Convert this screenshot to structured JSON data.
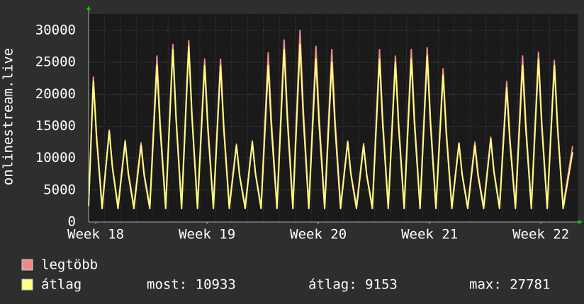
{
  "chart_data": {
    "type": "line",
    "ylabel": "onlinestream.live",
    "x": [
      0,
      0.3,
      0.5,
      0.85,
      1.3,
      1.5,
      1.85,
      2.3,
      2.5,
      2.85,
      3.3,
      3.5,
      3.85,
      4.3,
      4.5,
      4.85,
      5.3,
      5.5,
      5.85,
      6.3,
      6.5,
      6.85,
      7.3,
      7.5,
      7.85,
      8.3,
      8.5,
      8.85,
      9.3,
      9.5,
      9.85,
      10.3,
      10.5,
      10.85,
      11.3,
      11.5,
      11.85,
      12.3,
      12.5,
      12.85,
      13.3,
      13.5,
      13.85,
      14.3,
      14.5,
      14.85,
      15.3,
      15.5,
      15.85,
      16.3,
      16.5,
      16.85,
      17.3,
      17.5,
      17.85,
      18.3,
      18.5,
      18.85,
      19.3,
      19.5,
      19.85,
      20.3,
      20.5,
      20.85,
      21.3,
      21.5,
      21.85,
      22.3,
      22.5,
      22.85,
      23.3,
      23.5,
      23.85,
      24.3,
      24.5,
      24.85,
      25.3,
      25.5,
      25.85,
      26.3,
      26.5,
      26.85,
      27.3,
      27.5,
      27.85,
      28.3,
      28.5,
      28.85,
      29.3,
      29.5,
      29.85,
      30.45
    ],
    "series": [
      {
        "name": "legtöbb",
        "color": "#f08a8a",
        "values": [
          2700,
          22700,
          13620,
          2500,
          14400,
          8640,
          2500,
          12800,
          7680,
          2500,
          12400,
          7440,
          2500,
          26000,
          15600,
          2500,
          27800,
          16680,
          2500,
          28400,
          17040,
          2500,
          25500,
          15300,
          2500,
          25500,
          15300,
          2500,
          12200,
          7320,
          2500,
          12700,
          7620,
          2500,
          26500,
          15900,
          2500,
          28500,
          17100,
          2500,
          30000,
          18000,
          2500,
          27500,
          16500,
          2500,
          27000,
          16200,
          2500,
          12700,
          7620,
          2500,
          12300,
          7380,
          2500,
          27000,
          16200,
          2500,
          26000,
          15600,
          2500,
          27000,
          16200,
          2500,
          27300,
          16380,
          2500,
          24000,
          14400,
          2500,
          12400,
          7440,
          2500,
          12500,
          7500,
          2500,
          13300,
          7980,
          2500,
          22000,
          13200,
          2500,
          26000,
          15600,
          2500,
          26600,
          15960,
          2500,
          25300,
          15180,
          2500,
          11900
        ]
      },
      {
        "name": "átlag",
        "color": "#ffff80",
        "values": [
          2500,
          22000,
          13200,
          2100,
          14200,
          8520,
          2100,
          12500,
          7500,
          2100,
          12000,
          7200,
          2100,
          24500,
          14700,
          2100,
          27000,
          16200,
          2100,
          27500,
          16500,
          2100,
          24500,
          14700,
          2100,
          24500,
          14700,
          2100,
          12000,
          7200,
          2100,
          12500,
          7500,
          2100,
          24500,
          14700,
          2100,
          27000,
          16200,
          2100,
          27781,
          16670,
          2100,
          25500,
          15300,
          2100,
          25000,
          15000,
          2100,
          12500,
          7500,
          2100,
          12000,
          7200,
          2100,
          25500,
          15300,
          2100,
          25000,
          15000,
          2100,
          25500,
          15300,
          2100,
          26000,
          15600,
          2100,
          23000,
          13800,
          2100,
          12300,
          7380,
          2100,
          12000,
          7200,
          2100,
          13000,
          7800,
          2100,
          21000,
          12600,
          2100,
          24500,
          14700,
          2100,
          25500,
          15300,
          2100,
          24500,
          14700,
          2100,
          10933
        ]
      }
    ],
    "stats": [
      "most: 10933",
      "átlag: 9153",
      "max: 27781"
    ],
    "xlim": [
      0,
      30.45
    ],
    "xticks": [
      {
        "value": 0.45,
        "label": "Week 18"
      },
      {
        "value": 7.45,
        "label": "Week 19"
      },
      {
        "value": 14.45,
        "label": "Week 20"
      },
      {
        "value": 21.45,
        "label": "Week 21"
      },
      {
        "value": 28.45,
        "label": "Week 22"
      }
    ],
    "ylim": [
      0,
      30000
    ],
    "yticks": [
      0,
      5000,
      10000,
      15000,
      20000,
      25000,
      30000
    ],
    "grid": true
  }
}
